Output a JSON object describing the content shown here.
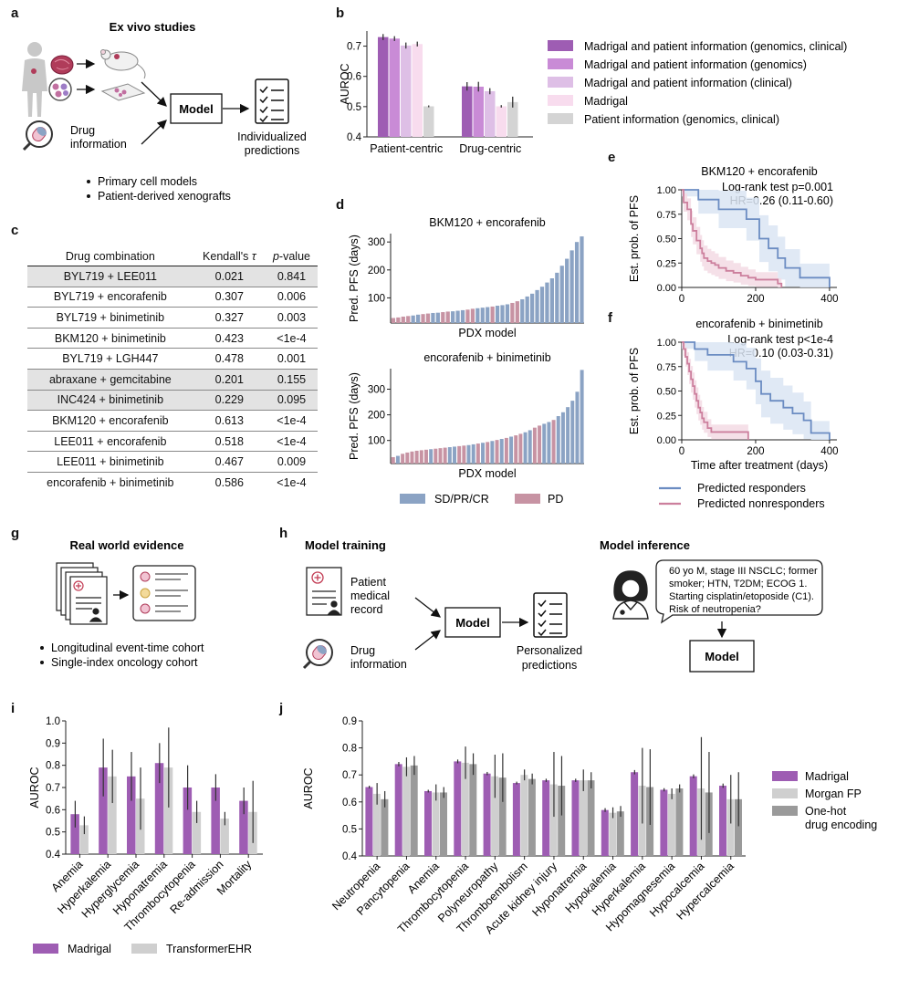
{
  "panels": {
    "a": "a",
    "b": "b",
    "c": "c",
    "d": "d",
    "e": "e",
    "f": "f",
    "g": "g",
    "h": "h",
    "i": "i",
    "j": "j"
  },
  "panel_a": {
    "title": "Ex vivo studies",
    "drug_info": "Drug information",
    "model": "Model",
    "output": "Individualized predictions",
    "bullets": [
      "Primary cell models",
      "Patient-derived xenografts"
    ]
  },
  "panel_c": {
    "headers": {
      "combo": "Drug combination",
      "tau": "Kendall's",
      "tau_symbol": "τ",
      "p": "p",
      "p_rest": "-value"
    },
    "rows": [
      {
        "combo": "BYL719 + LEE011",
        "tau": "0.021",
        "p": "0.841",
        "shaded": true
      },
      {
        "combo": "BYL719 + encorafenib",
        "tau": "0.307",
        "p": "0.006",
        "shaded": false
      },
      {
        "combo": "BYL719 + binimetinib",
        "tau": "0.327",
        "p": "0.003",
        "shaded": false
      },
      {
        "combo": "BKM120 + binimetinib",
        "tau": "0.423",
        "p": "<1e-4",
        "shaded": false
      },
      {
        "combo": "BYL719 + LGH447",
        "tau": "0.478",
        "p": "0.001",
        "shaded": false
      },
      {
        "combo": "abraxane + gemcitabine",
        "tau": "0.201",
        "p": "0.155",
        "shaded": true
      },
      {
        "combo": "INC424 + binimetinib",
        "tau": "0.229",
        "p": "0.095",
        "shaded": true
      },
      {
        "combo": "BKM120 + encorafenib",
        "tau": "0.613",
        "p": "<1e-4",
        "shaded": false
      },
      {
        "combo": "LEE011 + encorafenib",
        "tau": "0.518",
        "p": "<1e-4",
        "shaded": false
      },
      {
        "combo": "LEE011 + binimetinib",
        "tau": "0.467",
        "p": "0.009",
        "shaded": false
      },
      {
        "combo": "encorafenib + binimetinib",
        "tau": "0.586",
        "p": "<1e-4",
        "shaded": false
      }
    ]
  },
  "panel_g": {
    "title": "Real world evidence",
    "bullets": [
      "Longitudinal event-time cohort",
      "Single-index oncology cohort"
    ]
  },
  "panel_h": {
    "training_title": "Model training",
    "inference_title": "Model inference",
    "record": "Patient medical record",
    "drug_info": "Drug information",
    "model": "Model",
    "output": "Personalized predictions",
    "speech": [
      "60 yo M, stage III NSCLC; former",
      "smoker; HTN, T2DM; ECOG 1.",
      "Starting cisplatin/etoposide (C1).",
      "Risk of neutropenia?"
    ],
    "inference_model": "Model"
  },
  "colors": {
    "madrigal_full": "#9e5db3",
    "madrigal_genomics": "#c98bd6",
    "madrigal_clinical": "#debfe6",
    "madrigal_only": "#f8dcee",
    "patient_info": "#d4d4d4",
    "responder": "#6b8cc2",
    "nonresponder": "#cc7f9d",
    "responder_band": "#dbe5f3",
    "nonresponder_band": "#f3dbe4",
    "bar_blue": "#8ba3c4",
    "bar_pink": "#c793a3",
    "morgan": "#cfcfcf",
    "onehot": "#9a9a9a"
  },
  "chart_data": [
    {
      "id": "b",
      "type": "bar",
      "ylabel": "AUROC",
      "ylim": [
        0.4,
        0.75
      ],
      "yticks": [
        "0.4",
        "0.5",
        "0.6",
        "0.7"
      ],
      "categories": [
        "Patient-centric",
        "Drug-centric"
      ],
      "series": [
        {
          "name": "Madrigal and patient information (genomics, clinical)",
          "values": [
            0.73,
            0.567
          ],
          "errors": [
            0.01,
            0.014
          ]
        },
        {
          "name": "Madrigal and patient information (genomics)",
          "values": [
            0.725,
            0.566
          ],
          "errors": [
            0.008,
            0.016
          ]
        },
        {
          "name": "Madrigal and patient information (clinical)",
          "values": [
            0.702,
            0.551
          ],
          "errors": [
            0.01,
            0.01
          ]
        },
        {
          "name": "Madrigal",
          "values": [
            0.707,
            0.501
          ],
          "errors": [
            0.008,
            0.004
          ]
        },
        {
          "name": "Patient information (genomics, clinical)",
          "values": [
            0.501,
            0.515
          ],
          "errors": [
            0.003,
            0.018
          ]
        }
      ]
    },
    {
      "id": "d1",
      "type": "bar",
      "title": "BKM120 + encorafenib",
      "ylabel": "Pred. PFS (days)",
      "xlabel": "PDX model",
      "ylim": [
        10,
        330
      ],
      "yticks": [
        "100",
        "200",
        "300"
      ],
      "legend": {
        "responder": "SD/PR/CR",
        "nonresponder": "PD"
      },
      "values": [
        28,
        30,
        33,
        35,
        37,
        40,
        42,
        44,
        46,
        47,
        49,
        51,
        52,
        54,
        56,
        58,
        61,
        63,
        65,
        67,
        69,
        72,
        74,
        77,
        82,
        88,
        95,
        105,
        115,
        128,
        140,
        155,
        170,
        190,
        215,
        240,
        270,
        300,
        320
      ],
      "groups": [
        "PD",
        "PD",
        "PD",
        "PD",
        "SD",
        "SD",
        "PD",
        "PD",
        "SD",
        "SD",
        "PD",
        "PD",
        "SD",
        "SD",
        "SD",
        "PD",
        "PD",
        "SD",
        "SD",
        "SD",
        "PD",
        "SD",
        "SD",
        "SD",
        "PD",
        "PD",
        "SD",
        "SD",
        "SD",
        "SD",
        "SD",
        "SD",
        "SD",
        "SD",
        "SD",
        "SD",
        "SD",
        "SD",
        "SD"
      ]
    },
    {
      "id": "d2",
      "type": "bar",
      "title": "encorafenib + binimetinib",
      "ylabel": "Pred. PFS (days)",
      "xlabel": "PDX model",
      "ylim": [
        10,
        380
      ],
      "yticks": [
        "100",
        "200",
        "300"
      ],
      "values": [
        35,
        40,
        48,
        53,
        57,
        60,
        62,
        64,
        66,
        68,
        70,
        72,
        74,
        76,
        78,
        80,
        82,
        85,
        88,
        91,
        94,
        98,
        102,
        106,
        110,
        115,
        120,
        126,
        132,
        140,
        150,
        158,
        165,
        172,
        180,
        195,
        210,
        230,
        255,
        290,
        375
      ],
      "groups": [
        "PD",
        "SD",
        "PD",
        "PD",
        "PD",
        "PD",
        "PD",
        "PD",
        "SD",
        "PD",
        "PD",
        "PD",
        "SD",
        "SD",
        "PD",
        "PD",
        "SD",
        "SD",
        "PD",
        "SD",
        "PD",
        "SD",
        "PD",
        "SD",
        "PD",
        "SD",
        "PD",
        "PD",
        "SD",
        "SD",
        "PD",
        "PD",
        "SD",
        "SD",
        "PD",
        "SD",
        "SD",
        "SD",
        "SD",
        "SD",
        "SD"
      ]
    },
    {
      "id": "e",
      "type": "line",
      "title": "BKM120 + encorafenib",
      "annotation": [
        "Log-rank test p=0.001",
        "HR=0.26 (0.11-0.60)"
      ],
      "ylabel": "Est. prob. of PFS",
      "xlim": [
        0,
        420
      ],
      "ylim": [
        0,
        1
      ],
      "xticks": [
        "0",
        "200",
        "400"
      ],
      "yticks": [
        "0.00",
        "0.25",
        "0.50",
        "0.75",
        "1.00"
      ],
      "series": [
        {
          "name": "Predicted responders",
          "x": [
            0,
            30,
            45,
            60,
            100,
            130,
            175,
            210,
            235,
            260,
            280,
            320,
            400
          ],
          "y": [
            1.0,
            1.0,
            0.9,
            0.9,
            0.8,
            0.8,
            0.7,
            0.5,
            0.4,
            0.3,
            0.2,
            0.1,
            0.0
          ]
        },
        {
          "name": "Predicted nonresponders",
          "x": [
            0,
            5,
            15,
            25,
            30,
            40,
            50,
            55,
            60,
            70,
            80,
            90,
            100,
            120,
            140,
            160,
            180,
            200,
            230,
            260,
            270
          ],
          "y": [
            1.0,
            0.87,
            0.8,
            0.65,
            0.58,
            0.48,
            0.4,
            0.35,
            0.3,
            0.27,
            0.25,
            0.23,
            0.2,
            0.17,
            0.15,
            0.12,
            0.1,
            0.08,
            0.08,
            0.04,
            0.0
          ]
        }
      ]
    },
    {
      "id": "f",
      "type": "line",
      "title": "encorafenib + binimetinib",
      "annotation": [
        "Log-rank test p<1e-4",
        "HR=0.10 (0.03-0.31)"
      ],
      "ylabel": "Est. prob. of PFS",
      "xlabel": "Time after treatment (days)",
      "xlim": [
        0,
        420
      ],
      "ylim": [
        0,
        1
      ],
      "xticks": [
        "0",
        "200",
        "400"
      ],
      "yticks": [
        "0.00",
        "0.25",
        "0.50",
        "0.75",
        "1.00"
      ],
      "legend": [
        "Predicted responders",
        "Predicted nonresponders"
      ],
      "series": [
        {
          "name": "Predicted responders",
          "x": [
            0,
            20,
            35,
            55,
            70,
            100,
            140,
            175,
            200,
            215,
            240,
            275,
            300,
            330,
            350,
            400
          ],
          "y": [
            1.0,
            1.0,
            0.93,
            0.93,
            0.87,
            0.87,
            0.8,
            0.73,
            0.6,
            0.47,
            0.4,
            0.33,
            0.27,
            0.2,
            0.07,
            0.0
          ]
        },
        {
          "name": "Predicted nonresponders",
          "x": [
            0,
            5,
            10,
            15,
            20,
            25,
            30,
            35,
            40,
            45,
            50,
            55,
            60,
            70,
            80,
            100,
            120,
            140,
            160,
            180
          ],
          "y": [
            1.0,
            0.93,
            0.85,
            0.78,
            0.7,
            0.62,
            0.55,
            0.47,
            0.4,
            0.33,
            0.28,
            0.22,
            0.18,
            0.12,
            0.08,
            0.08,
            0.08,
            0.08,
            0.08,
            0.0
          ]
        }
      ]
    },
    {
      "id": "i",
      "type": "bar",
      "ylabel": "AUROC",
      "ylim": [
        0.4,
        1.0
      ],
      "yticks": [
        "0.4",
        "0.5",
        "0.6",
        "0.7",
        "0.8",
        "0.9",
        "1.0"
      ],
      "categories": [
        "Anemia",
        "Hyperkalemia",
        "Hyperglycemia",
        "Hyponatremia",
        "Thrombocytopenia",
        "Re-admission",
        "Mortality"
      ],
      "series": [
        {
          "name": "Madrigal",
          "values": [
            0.58,
            0.79,
            0.75,
            0.81,
            0.7,
            0.7,
            0.64
          ],
          "errors": [
            0.06,
            0.13,
            0.11,
            0.09,
            0.1,
            0.06,
            0.06
          ]
        },
        {
          "name": "TransformerEHR",
          "values": [
            0.53,
            0.75,
            0.65,
            0.79,
            0.59,
            0.56,
            0.59
          ],
          "errors": [
            0.04,
            0.12,
            0.14,
            0.18,
            0.05,
            0.03,
            0.14
          ]
        }
      ]
    },
    {
      "id": "j",
      "type": "bar",
      "ylabel": "AUROC",
      "ylim": [
        0.4,
        0.9
      ],
      "yticks": [
        "0.4",
        "0.5",
        "0.6",
        "0.7",
        "0.8",
        "0.9"
      ],
      "categories": [
        "Neutropenia",
        "Pancytopenia",
        "Anemia",
        "Thrombocytopenia",
        "Polyneuropathy",
        "Thromboembolism",
        "Acute kidney injury",
        "Hyponatremia",
        "Hypokalemia",
        "Hyperkalemia",
        "Hypomagnesemia",
        "Hypocalcemia",
        "Hypercalcemia"
      ],
      "series": [
        {
          "name": "Madrigal",
          "values": [
            0.655,
            0.74,
            0.64,
            0.75,
            0.705,
            0.67,
            0.68,
            0.68,
            0.57,
            0.71,
            0.645,
            0.695,
            0.66
          ],
          "errors": [
            0.005,
            0.008,
            0.005,
            0.007,
            0.006,
            0.005,
            0.006,
            0.006,
            0.007,
            0.008,
            0.006,
            0.007,
            0.008
          ]
        },
        {
          "name": "Morgan FP",
          "values": [
            0.63,
            0.73,
            0.635,
            0.745,
            0.695,
            0.7,
            0.665,
            0.68,
            0.56,
            0.66,
            0.63,
            0.65,
            0.61
          ],
          "errors": [
            0.04,
            0.035,
            0.03,
            0.06,
            0.08,
            0.02,
            0.12,
            0.04,
            0.02,
            0.14,
            0.02,
            0.19,
            0.09
          ]
        },
        {
          "name": "One-hot drug encoding",
          "values": [
            0.61,
            0.735,
            0.635,
            0.74,
            0.69,
            0.685,
            0.66,
            0.68,
            0.565,
            0.655,
            0.65,
            0.635,
            0.61
          ],
          "errors": [
            0.03,
            0.035,
            0.02,
            0.04,
            0.09,
            0.02,
            0.11,
            0.03,
            0.02,
            0.14,
            0.015,
            0.15,
            0.1
          ]
        }
      ]
    }
  ]
}
